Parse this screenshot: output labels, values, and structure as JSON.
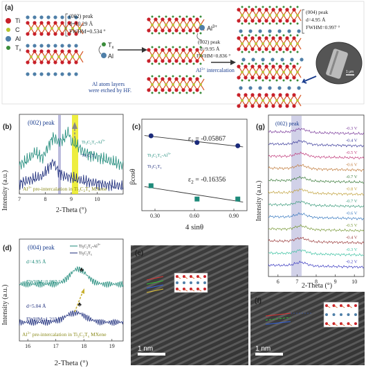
{
  "panel_a": {
    "label": "(a)",
    "legend": {
      "ti": "Ti",
      "c": "C",
      "al": "Al",
      "tx": "T",
      "tx_sub": "x"
    },
    "left_peak": {
      "title": "(002) peak",
      "d": "d=10.29 Å",
      "fwhm": "FWHM=0.534 °"
    },
    "tx_label": "T",
    "tx_label_sub": "x",
    "al_label": "Al",
    "etch_note_1": "Al atom layers",
    "etch_note_2": "were etched by HF.",
    "al3_label": "Al",
    "al3_sup": "3+",
    "mid_peak": {
      "title": "(002) peak",
      "d": "d=9.95 Å",
      "fwhm": "FWHM=0.836 °"
    },
    "intercalation_label": "Al",
    "intercalation_sup": "3+",
    "intercalation_rest": " intercalation",
    "right_peak": {
      "title": "(004) peak",
      "d": "d=4.95 Å",
      "fwhm": "FWHM=0.997 °"
    },
    "scale": "1 μm",
    "colors": {
      "ti": "#c8202a",
      "c": "#b5c42d",
      "al": "#4f7fa8",
      "tx": "#3a8c3a",
      "bond": "#d85a2a"
    }
  },
  "panel_b": {
    "label": "(b)",
    "peak": "(002) peak",
    "legend": [
      "Ti3C2Tx-Al3+",
      "Ti3C2Tx"
    ],
    "note": "Al3+ pre-intercalation in Ti3C2Tx MXene",
    "xlabel": "2-Theta (°)",
    "ylabel": "Intensity (a.u.)"
  },
  "panel_c": {
    "label": "(c)",
    "xlabel": "4 sinθ",
    "ylabel": "βcosθ",
    "eps1": "ε",
    "eps1_sub": "1",
    "eps1_val": " = -0.05867",
    "eps2": "ε",
    "eps2_sub": "2",
    "eps2_val": " = -0.16356",
    "legend": [
      "Ti3C2Tx-Al3+",
      "Ti3C2Tx"
    ]
  },
  "panel_d": {
    "label": "(d)",
    "peak": "(004) peak",
    "legend": [
      "Ti3C2Tx-Al3+",
      "Ti3C2Tx"
    ],
    "d1": "d=4.95 Å",
    "fwhm1": "FWHM=0.997 °",
    "d2": "d=5.04 Å",
    "fwhm2": "FWHM=1.215 °",
    "note": "Al3+ pre-intercalation in Ti3C2Tx MXene",
    "xlabel": "2-Theta (°)",
    "ylabel": "Intensity (a.u.)"
  },
  "panel_e": {
    "label": "(e)",
    "scale": "1 nm"
  },
  "panel_f": {
    "label": "(f)",
    "scale": "1 nm"
  },
  "panel_g": {
    "label": "(g)",
    "peak": "(002) peak",
    "voltages": [
      "-0.3 V",
      "-0.4 V",
      "-0.5 V",
      "-0.6 V",
      "-0.7 V",
      "-0.8 V",
      "-0.7 V",
      "-0.6 V",
      "-0.5 V",
      "-0.4 V",
      "-0.3 V",
      "-0.2 V"
    ],
    "xlabel": "2-Theta (°)",
    "ylabel": "Intensity (a.u.)"
  },
  "chart_data": [
    {
      "type": "line",
      "panel": "b",
      "xlim": [
        7,
        11
      ],
      "x_ticks": [
        7,
        8,
        9,
        10
      ],
      "series": [
        {
          "name": "Ti3C2Tx-Al3+",
          "x": [
            7.0,
            7.3,
            7.6,
            7.9,
            8.1,
            8.3,
            8.5,
            8.7,
            8.8,
            8.9,
            9.0,
            9.2,
            9.5,
            9.8,
            10.1,
            10.4,
            10.7,
            11.0
          ],
          "y": [
            0.35,
            0.45,
            0.6,
            0.5,
            0.7,
            0.9,
            0.8,
            0.85,
            0.92,
            1.0,
            0.8,
            0.75,
            0.6,
            0.55,
            0.5,
            0.45,
            0.4,
            0.35
          ]
        },
        {
          "name": "Ti3C2Tx",
          "x": [
            7.0,
            7.3,
            7.6,
            7.9,
            8.1,
            8.3,
            8.5,
            8.7,
            8.9,
            9.1,
            9.4,
            9.7,
            10.0,
            10.3,
            10.6,
            11.0
          ],
          "y": [
            0.15,
            0.2,
            0.25,
            0.3,
            0.45,
            0.6,
            0.4,
            0.3,
            0.28,
            0.25,
            0.2,
            0.18,
            0.15,
            0.12,
            0.1,
            0.08
          ]
        }
      ],
      "highlight_bands": [
        [
          8.3,
          8.4
        ],
        [
          8.9,
          9.1
        ]
      ]
    },
    {
      "type": "scatter",
      "panel": "c",
      "x_ticks": [
        0.3,
        0.6,
        0.9
      ],
      "series": [
        {
          "name": "Ti3C2Tx-Al3+",
          "x": [
            0.27,
            0.62,
            0.93
          ],
          "y": [
            0.8,
            0.76,
            0.74
          ]
        },
        {
          "name": "Ti3C2Tx",
          "x": [
            0.27,
            0.62,
            0.93
          ],
          "y": [
            0.5,
            0.42,
            0.42
          ]
        }
      ]
    },
    {
      "type": "line",
      "panel": "d",
      "xlim": [
        15.7,
        19.4
      ],
      "x_ticks": [
        16,
        17,
        18,
        19
      ],
      "series": [
        {
          "name": "Ti3C2Tx-Al3+",
          "peak_x": 17.8
        },
        {
          "name": "Ti3C2Tx",
          "peak_x": 17.7
        }
      ]
    },
    {
      "type": "line",
      "panel": "g",
      "xlim": [
        5.5,
        10.5
      ],
      "x_ticks": [
        6,
        7,
        8,
        9,
        10
      ],
      "highlight_band": [
        6.9,
        7.5
      ],
      "series_count": 12
    }
  ]
}
